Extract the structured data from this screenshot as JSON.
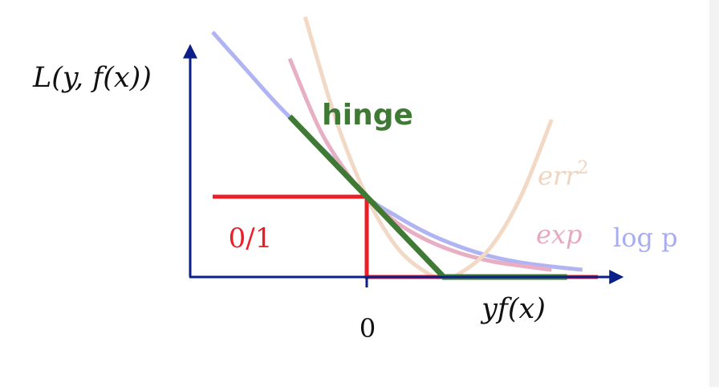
{
  "chart_data": {
    "type": "line",
    "title": "",
    "ylabel": "L(y, f(x))",
    "xlabel": "yf(x)",
    "x_ticks": [
      {
        "value": 0,
        "label": "0"
      }
    ],
    "xlim": [
      -2.2,
      3.2
    ],
    "ylim": [
      0,
      3.3
    ],
    "grid": false,
    "legend": "inline labels at line ends",
    "series": [
      {
        "name": "0/1",
        "color": "#ee1c25",
        "x": [
          -2.0,
          0,
          0,
          3.0
        ],
        "y": [
          1,
          1,
          0,
          0
        ]
      },
      {
        "name": "hinge",
        "color": "#3f7a34",
        "x": [
          -1.0,
          1.0,
          2.6
        ],
        "y": [
          2.0,
          0.0,
          0.0
        ]
      },
      {
        "name": "err^2",
        "color": "#f2d9c6",
        "x": [
          -0.8,
          -0.4,
          0,
          0.4,
          0.8,
          1.0,
          1.2,
          1.6,
          2.0,
          2.4
        ],
        "y": [
          3.24,
          1.96,
          1.0,
          0.36,
          0.04,
          0.0,
          0.04,
          0.36,
          1.0,
          1.96
        ]
      },
      {
        "name": "exp",
        "color": "#e8aec4",
        "x": [
          -1.0,
          -0.6,
          -0.2,
          0,
          0.4,
          0.8,
          1.2,
          1.6,
          2.0,
          2.4
        ],
        "y": [
          2.72,
          1.82,
          1.22,
          1.0,
          0.67,
          0.45,
          0.3,
          0.2,
          0.14,
          0.09
        ]
      },
      {
        "name": "log p",
        "color": "#b0b4f2",
        "x": [
          -2.0,
          -1.6,
          -1.2,
          -0.8,
          -0.4,
          0,
          0.4,
          0.8,
          1.2,
          1.6,
          2.0,
          2.4,
          2.8
        ],
        "y": [
          3.05,
          2.62,
          2.19,
          1.8,
          1.43,
          1.0,
          0.75,
          0.54,
          0.38,
          0.26,
          0.18,
          0.13,
          0.09
        ]
      }
    ],
    "labels": {
      "ylabel_text": "L(y, f(x))",
      "xlabel_text": "yf(x)",
      "tick_zero": "0",
      "zero_one": "0/1",
      "hinge": "hinge",
      "err_base": "err",
      "err_sup": "2",
      "exp": "exp",
      "logp": "log p"
    },
    "colors": {
      "axis": "#0b1f8a",
      "zero_one": "#ee1c25",
      "hinge": "#3f7a34",
      "err2": "#f2d9c6",
      "exp": "#e8aec4",
      "logp": "#b0b4f2",
      "err_label": "#f0d4bf",
      "exp_label": "#e8a9c0",
      "logp_label": "#a8acf0"
    }
  }
}
